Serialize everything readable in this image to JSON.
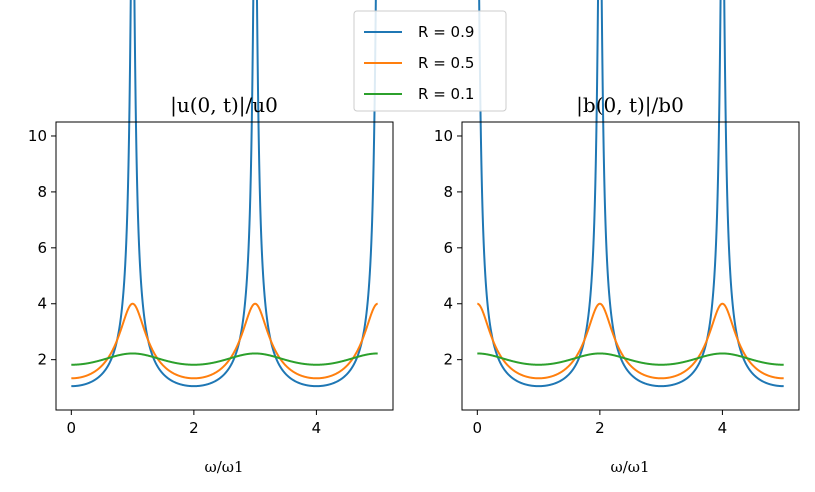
{
  "chart_data": [
    {
      "type": "line",
      "title": "|u(0, t)|/u0",
      "xlabel": "ω/ω1",
      "ylabel": "",
      "xlim": [
        -0.25,
        5.25
      ],
      "ylim": [
        0.2,
        10.5
      ],
      "xticks": [
        "0",
        "2",
        "4"
      ],
      "yticks": [
        "2",
        "4",
        "6",
        "8",
        "10"
      ],
      "peak_x": [
        1,
        3,
        5
      ],
      "series": [
        {
          "name": "R = 0.9",
          "color": "#1f77b4",
          "R": 0.9
        },
        {
          "name": "R = 0.5",
          "color": "#ff7f0e",
          "R": 0.5
        },
        {
          "name": "R = 0.1",
          "color": "#2ca02c",
          "R": 0.1
        }
      ]
    },
    {
      "type": "line",
      "title": "|b(0, t)|/b0",
      "xlabel": "ω/ω1",
      "ylabel": "",
      "xlim": [
        -0.25,
        5.25
      ],
      "ylim": [
        0.2,
        10.5
      ],
      "xticks": [
        "0",
        "2",
        "4"
      ],
      "yticks": [
        "2",
        "4",
        "6",
        "8",
        "10"
      ],
      "peak_x": [
        0,
        2,
        4
      ],
      "series": [
        {
          "name": "R = 0.9",
          "color": "#1f77b4",
          "R": 0.9
        },
        {
          "name": "R = 0.5",
          "color": "#ff7f0e",
          "R": 0.5
        },
        {
          "name": "R = 0.1",
          "color": "#2ca02c",
          "R": 0.1
        }
      ]
    }
  ],
  "legend": {
    "placement": "upper-center",
    "entries": [
      {
        "label": "R = 0.9",
        "color": "#1f77b4"
      },
      {
        "label": "R = 0.5",
        "color": "#ff7f0e"
      },
      {
        "label": "R = 0.1",
        "color": "#2ca02c"
      }
    ]
  }
}
